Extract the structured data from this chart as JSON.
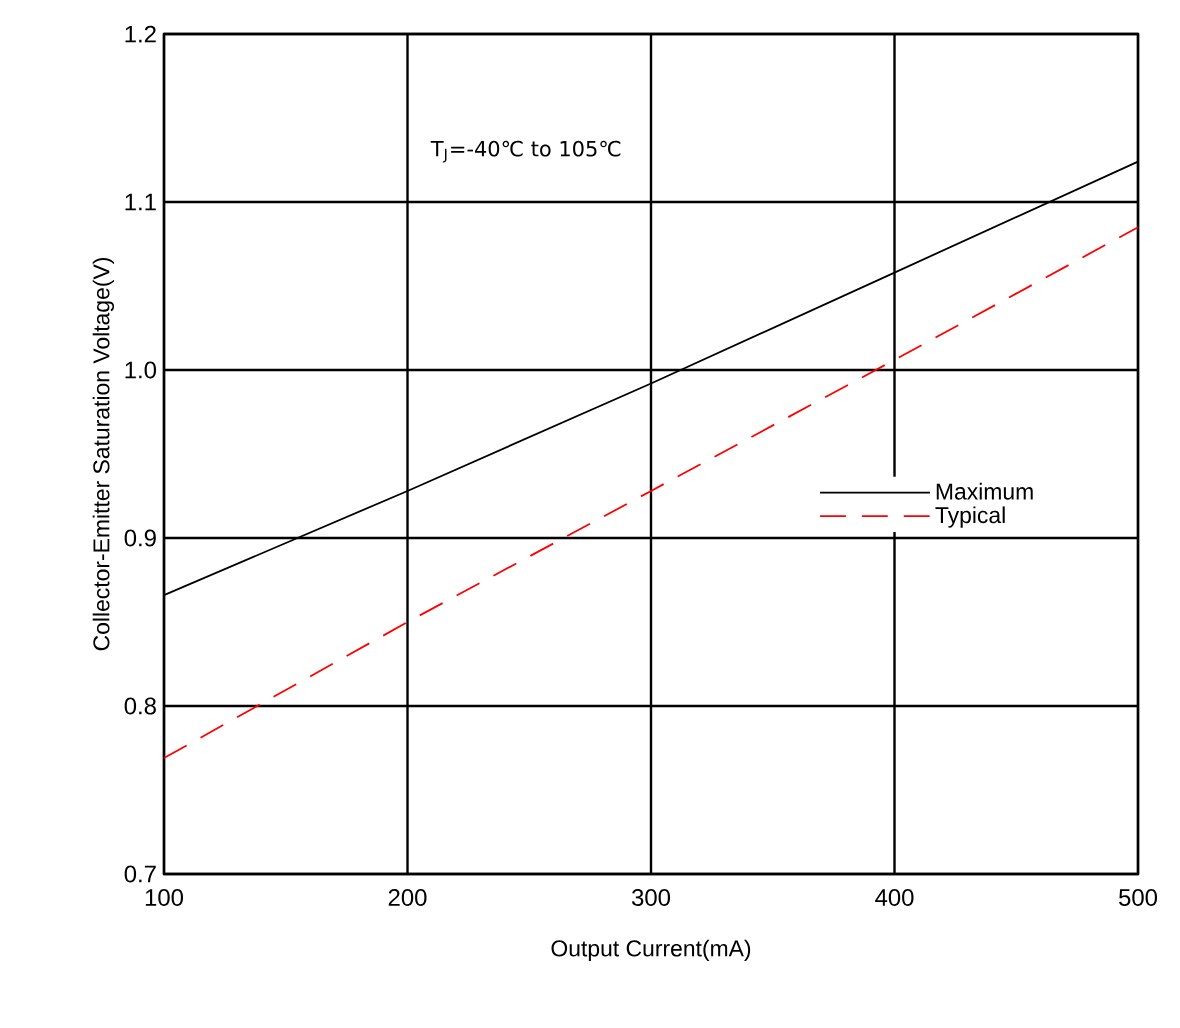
{
  "chart_data": {
    "type": "line",
    "xlabel": "Output Current(mA)",
    "ylabel": "Collector-Emitter Saturation Voltage(V)",
    "x": [
      100,
      200,
      300,
      400,
      500
    ],
    "series": [
      {
        "name": "Maximum",
        "color": "#000000",
        "line_style": "solid",
        "values": [
          0.866,
          0.928,
          0.992,
          1.058,
          1.124
        ]
      },
      {
        "name": "Typical",
        "color": "#ff0000",
        "line_style": "dashed",
        "values": [
          0.769,
          0.85,
          0.928,
          1.006,
          1.085
        ]
      }
    ],
    "xlim": [
      100,
      500
    ],
    "xticks": [
      100,
      200,
      300,
      400,
      500
    ],
    "ylim": [
      0.7,
      1.2
    ],
    "yticks": [
      0.7,
      0.8,
      0.9,
      {
        "value": 1.0,
        "label": "1.0"
      },
      1.1,
      1.2
    ],
    "grid": true,
    "legend": "right",
    "annotations": [
      "T$_{J}$=-40℃ to 105℃"
    ]
  }
}
